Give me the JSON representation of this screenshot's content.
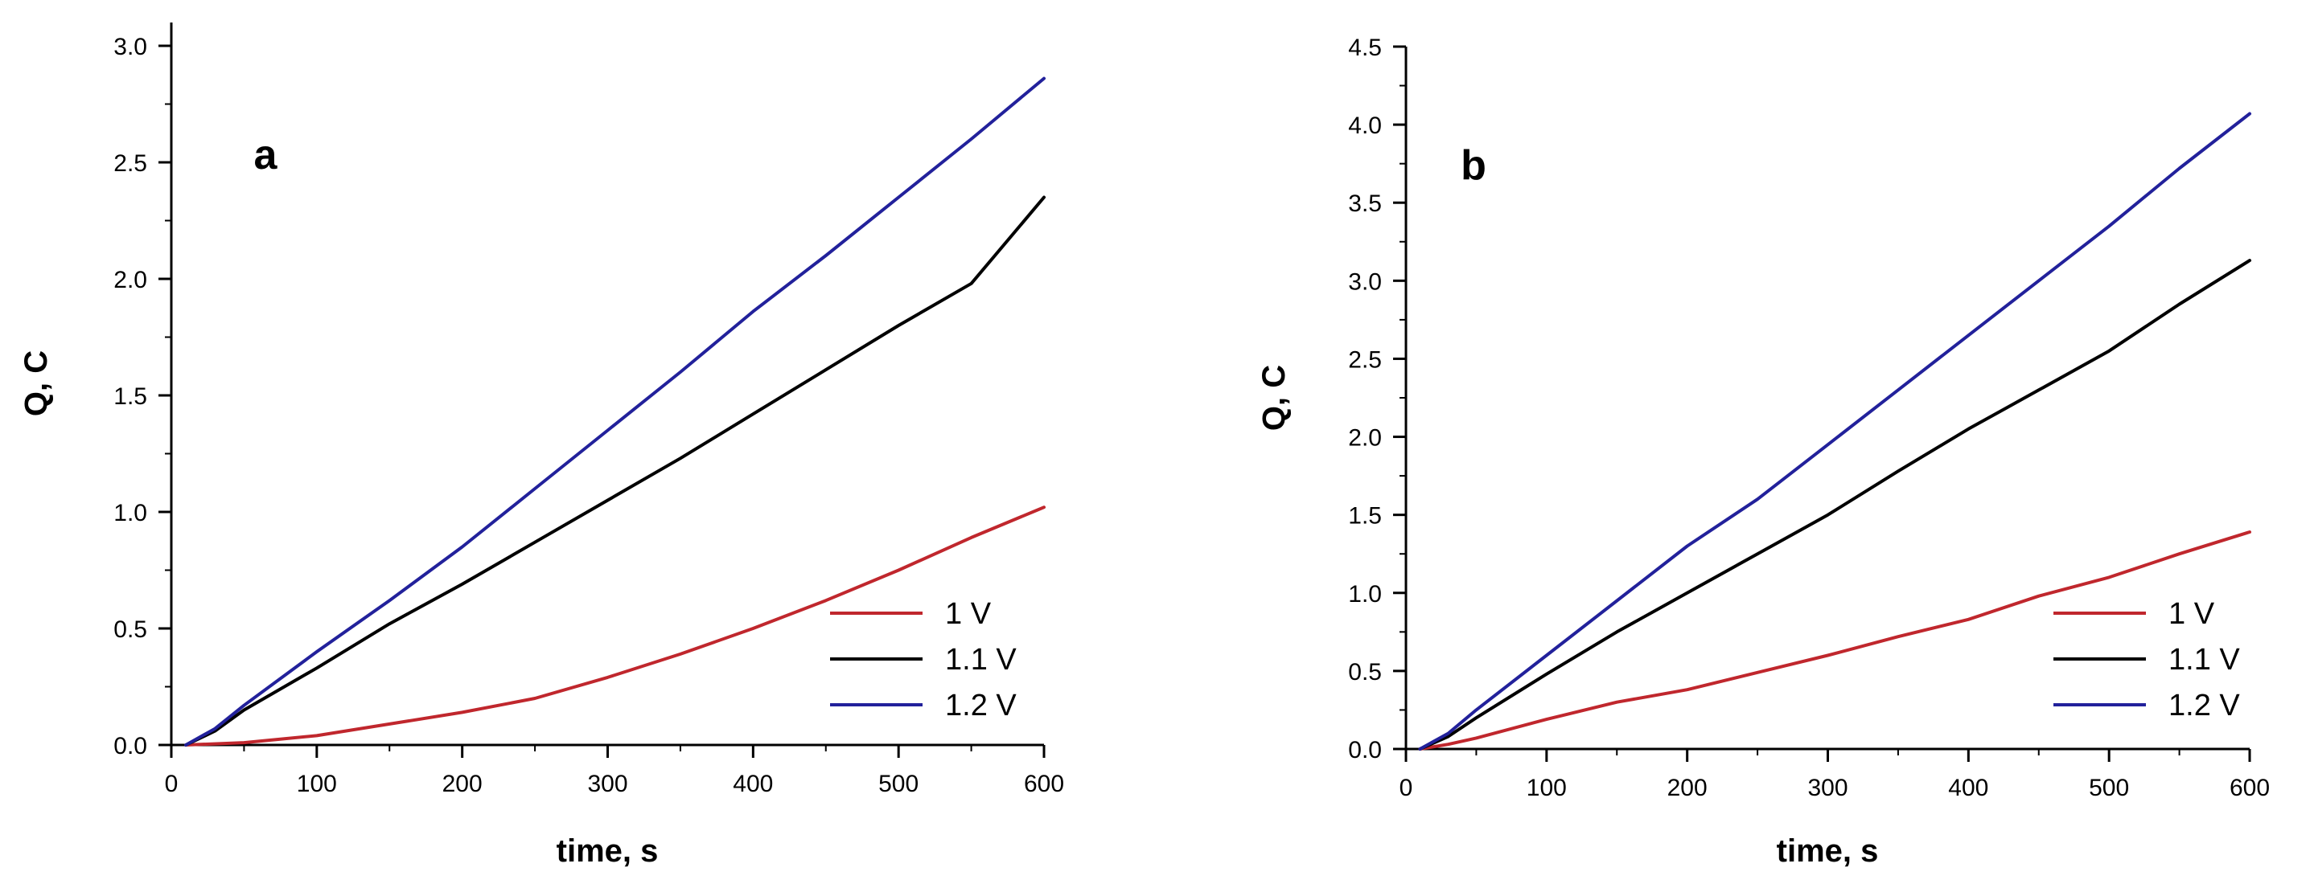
{
  "chart_data": [
    {
      "type": "line",
      "panel_label": "a",
      "xlabel": "time, s",
      "ylabel": "Q, C",
      "xlim": [
        0,
        600
      ],
      "ylim": [
        0,
        3.1
      ],
      "xticks": [
        "0",
        "100",
        "200",
        "300",
        "400",
        "500",
        "600"
      ],
      "yticks": [
        "0.0",
        "0.5",
        "1.0",
        "1.5",
        "2.0",
        "2.5",
        "3.0"
      ],
      "legend_position": "bottom-right",
      "series": [
        {
          "name": "1 V",
          "color": "#c0272d",
          "x": [
            10,
            50,
            100,
            150,
            200,
            250,
            300,
            350,
            400,
            450,
            500,
            550,
            600
          ],
          "y": [
            0.0,
            0.01,
            0.04,
            0.09,
            0.14,
            0.2,
            0.29,
            0.39,
            0.5,
            0.62,
            0.75,
            0.89,
            1.02
          ]
        },
        {
          "name": "1.1 V",
          "color": "#000000",
          "x": [
            10,
            30,
            50,
            100,
            150,
            200,
            250,
            300,
            350,
            400,
            450,
            500,
            550,
            600
          ],
          "y": [
            0.0,
            0.06,
            0.15,
            0.33,
            0.52,
            0.69,
            0.87,
            1.05,
            1.23,
            1.42,
            1.61,
            1.8,
            1.98,
            2.35
          ]
        },
        {
          "name": "1.2 V",
          "color": "#22219b",
          "x": [
            10,
            30,
            50,
            100,
            150,
            200,
            250,
            300,
            350,
            400,
            450,
            500,
            550,
            600
          ],
          "y": [
            0.0,
            0.07,
            0.17,
            0.4,
            0.62,
            0.85,
            1.1,
            1.35,
            1.6,
            1.86,
            2.1,
            2.35,
            2.6,
            2.86
          ]
        }
      ]
    },
    {
      "type": "line",
      "panel_label": "b",
      "xlabel": "time, s",
      "ylabel": "Q, C",
      "xlim": [
        0,
        600
      ],
      "ylim": [
        0,
        4.5
      ],
      "xticks": [
        "0",
        "100",
        "200",
        "300",
        "400",
        "500",
        "600"
      ],
      "yticks": [
        "0.0",
        "0.5",
        "1.0",
        "1.5",
        "2.0",
        "2.5",
        "3.0",
        "3.5",
        "4.0",
        "4.5"
      ],
      "legend_position": "bottom-right",
      "series": [
        {
          "name": "1 V",
          "color": "#c0272d",
          "x": [
            10,
            30,
            50,
            100,
            150,
            200,
            250,
            300,
            350,
            400,
            450,
            500,
            550,
            600
          ],
          "y": [
            0.0,
            0.03,
            0.07,
            0.19,
            0.3,
            0.38,
            0.49,
            0.6,
            0.72,
            0.83,
            0.98,
            1.1,
            1.25,
            1.39
          ]
        },
        {
          "name": "1.1 V",
          "color": "#000000",
          "x": [
            10,
            30,
            50,
            100,
            150,
            200,
            250,
            300,
            350,
            400,
            450,
            500,
            550,
            600
          ],
          "y": [
            0.0,
            0.08,
            0.2,
            0.48,
            0.75,
            1.0,
            1.25,
            1.5,
            1.78,
            2.05,
            2.3,
            2.55,
            2.85,
            3.13
          ]
        },
        {
          "name": "1.2 V",
          "color": "#22219b",
          "x": [
            10,
            30,
            50,
            100,
            150,
            200,
            250,
            300,
            350,
            400,
            450,
            500,
            550,
            600
          ],
          "y": [
            0.0,
            0.1,
            0.25,
            0.6,
            0.95,
            1.3,
            1.6,
            1.95,
            2.3,
            2.65,
            3.0,
            3.35,
            3.72,
            4.07
          ]
        }
      ]
    }
  ]
}
